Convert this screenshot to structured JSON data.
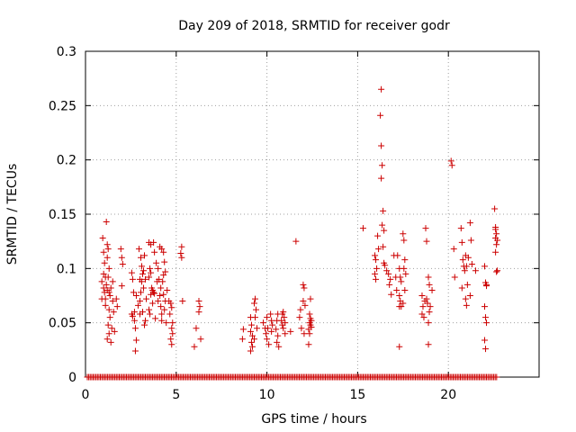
{
  "chart_data": {
    "type": "scatter",
    "title": "Day 209 of 2018, SRMTID for receiver godr",
    "xlabel": "GPS time / hours",
    "ylabel": "SRMTID / TECUs",
    "xlim": [
      0,
      25
    ],
    "ylim": [
      0,
      0.3
    ],
    "grid": true,
    "marker": "+",
    "color": "#cc0000",
    "xticks": [
      0,
      5,
      10,
      15,
      20
    ],
    "xtick_labels": [
      "0",
      "5",
      "10",
      "15",
      "20"
    ],
    "yticks": [
      0,
      0.05,
      0.1,
      0.15,
      0.2,
      0.25,
      0.3
    ],
    "ytick_labels": [
      "0",
      "0.05",
      "0.1",
      "0.15",
      "0.2",
      "0.25",
      "0.3"
    ],
    "zero_baseline": {
      "x_start": 0.1,
      "x_end": 22.7,
      "step": 0.08,
      "y": 0
    },
    "series": [
      {
        "name": "SRMTID",
        "points": [
          [
            0.95,
            0.128
          ],
          [
            1.0,
            0.115
          ],
          [
            1.05,
            0.105
          ],
          [
            1.1,
            0.092
          ],
          [
            0.9,
            0.088
          ],
          [
            1.0,
            0.082
          ],
          [
            1.05,
            0.078
          ],
          [
            1.1,
            0.072
          ],
          [
            0.9,
            0.072
          ],
          [
            1.15,
            0.143
          ],
          [
            1.2,
            0.122
          ],
          [
            1.25,
            0.118
          ],
          [
            1.2,
            0.11
          ],
          [
            1.3,
            0.1
          ],
          [
            1.25,
            0.092
          ],
          [
            1.2,
            0.08
          ],
          [
            1.3,
            0.078
          ],
          [
            1.35,
            0.075
          ],
          [
            1.4,
            0.082
          ],
          [
            1.3,
            0.062
          ],
          [
            1.35,
            0.055
          ],
          [
            1.25,
            0.048
          ],
          [
            1.3,
            0.04
          ],
          [
            1.2,
            0.035
          ],
          [
            1.4,
            0.032
          ],
          [
            1.5,
            0.07
          ],
          [
            1.55,
            0.06
          ],
          [
            1.45,
            0.045
          ],
          [
            1.6,
            0.042
          ],
          [
            1.7,
            0.072
          ],
          [
            1.75,
            0.065
          ],
          [
            1.5,
            0.088
          ],
          [
            1.1,
            0.066
          ],
          [
            1.0,
            0.095
          ],
          [
            1.15,
            0.085
          ],
          [
            1.95,
            0.118
          ],
          [
            2.0,
            0.11
          ],
          [
            2.05,
            0.104
          ],
          [
            2.0,
            0.084
          ],
          [
            2.55,
            0.096
          ],
          [
            2.6,
            0.09
          ],
          [
            2.65,
            0.078
          ],
          [
            2.7,
            0.06
          ],
          [
            2.6,
            0.056
          ],
          [
            2.55,
            0.058
          ],
          [
            2.7,
            0.052
          ],
          [
            2.8,
            0.075
          ],
          [
            2.75,
            0.045
          ],
          [
            2.8,
            0.034
          ],
          [
            2.75,
            0.024
          ],
          [
            2.9,
            0.066
          ],
          [
            3.0,
            0.07
          ],
          [
            2.95,
            0.118
          ],
          [
            3.05,
            0.11
          ],
          [
            3.1,
            0.102
          ],
          [
            3.15,
            0.095
          ],
          [
            3.0,
            0.09
          ],
          [
            3.1,
            0.088
          ],
          [
            3.2,
            0.082
          ],
          [
            3.05,
            0.078
          ],
          [
            3.0,
            0.058
          ],
          [
            3.15,
            0.06
          ],
          [
            3.3,
            0.052
          ],
          [
            3.25,
            0.048
          ],
          [
            3.2,
            0.098
          ],
          [
            3.3,
            0.09
          ],
          [
            3.25,
            0.112
          ],
          [
            3.35,
            0.072
          ],
          [
            3.5,
            0.124
          ],
          [
            3.6,
            0.122
          ],
          [
            3.55,
            0.1
          ],
          [
            3.6,
            0.096
          ],
          [
            3.5,
            0.092
          ],
          [
            3.65,
            0.082
          ],
          [
            3.7,
            0.08
          ],
          [
            3.75,
            0.078
          ],
          [
            3.8,
            0.077
          ],
          [
            3.6,
            0.076
          ],
          [
            3.5,
            0.062
          ],
          [
            3.55,
            0.058
          ],
          [
            3.7,
            0.068
          ],
          [
            3.85,
            0.054
          ],
          [
            3.75,
            0.124
          ],
          [
            3.8,
            0.115
          ],
          [
            3.9,
            0.105
          ],
          [
            4.0,
            0.1
          ],
          [
            4.05,
            0.09
          ],
          [
            3.95,
            0.088
          ],
          [
            4.1,
            0.075
          ],
          [
            4.0,
            0.07
          ],
          [
            4.15,
            0.065
          ],
          [
            4.2,
            0.058
          ],
          [
            4.1,
            0.12
          ],
          [
            4.2,
            0.118
          ],
          [
            4.3,
            0.115
          ],
          [
            4.35,
            0.106
          ],
          [
            4.4,
            0.097
          ],
          [
            4.3,
            0.094
          ],
          [
            4.25,
            0.088
          ],
          [
            4.15,
            0.082
          ],
          [
            4.3,
            0.076
          ],
          [
            4.4,
            0.07
          ],
          [
            4.35,
            0.062
          ],
          [
            4.2,
            0.052
          ],
          [
            4.45,
            0.05
          ],
          [
            4.5,
            0.08
          ],
          [
            4.6,
            0.07
          ],
          [
            4.7,
            0.068
          ],
          [
            4.75,
            0.064
          ],
          [
            4.65,
            0.058
          ],
          [
            4.8,
            0.05
          ],
          [
            4.75,
            0.045
          ],
          [
            4.8,
            0.04
          ],
          [
            4.7,
            0.035
          ],
          [
            4.75,
            0.03
          ],
          [
            5.3,
            0.12
          ],
          [
            5.25,
            0.114
          ],
          [
            5.3,
            0.11
          ],
          [
            5.35,
            0.07
          ],
          [
            6.1,
            0.045
          ],
          [
            6.0,
            0.028
          ],
          [
            6.25,
            0.07
          ],
          [
            6.3,
            0.065
          ],
          [
            6.25,
            0.06
          ],
          [
            6.35,
            0.035
          ],
          [
            8.7,
            0.044
          ],
          [
            8.65,
            0.035
          ],
          [
            9.1,
            0.055
          ],
          [
            9.15,
            0.048
          ],
          [
            9.1,
            0.042
          ],
          [
            9.2,
            0.038
          ],
          [
            9.15,
            0.032
          ],
          [
            9.2,
            0.028
          ],
          [
            9.1,
            0.024
          ],
          [
            9.35,
            0.072
          ],
          [
            9.3,
            0.068
          ],
          [
            9.4,
            0.062
          ],
          [
            9.35,
            0.055
          ],
          [
            9.45,
            0.045
          ],
          [
            9.3,
            0.035
          ],
          [
            9.8,
            0.05
          ],
          [
            9.9,
            0.045
          ],
          [
            10.0,
            0.055
          ],
          [
            10.05,
            0.045
          ],
          [
            9.95,
            0.04
          ],
          [
            10.0,
            0.035
          ],
          [
            10.1,
            0.03
          ],
          [
            10.2,
            0.058
          ],
          [
            10.25,
            0.052
          ],
          [
            10.3,
            0.048
          ],
          [
            10.25,
            0.042
          ],
          [
            10.6,
            0.058
          ],
          [
            10.55,
            0.052
          ],
          [
            10.5,
            0.044
          ],
          [
            10.6,
            0.038
          ],
          [
            10.55,
            0.032
          ],
          [
            10.65,
            0.028
          ],
          [
            10.8,
            0.052
          ],
          [
            10.85,
            0.048
          ],
          [
            10.9,
            0.06
          ],
          [
            10.95,
            0.055
          ],
          [
            11.0,
            0.05
          ],
          [
            10.9,
            0.045
          ],
          [
            11.0,
            0.04
          ],
          [
            10.85,
            0.058
          ],
          [
            11.3,
            0.042
          ],
          [
            11.6,
            0.125
          ],
          [
            11.85,
            0.062
          ],
          [
            11.8,
            0.055
          ],
          [
            11.9,
            0.045
          ],
          [
            12.0,
            0.085
          ],
          [
            12.05,
            0.082
          ],
          [
            12.0,
            0.07
          ],
          [
            12.1,
            0.066
          ],
          [
            12.05,
            0.04
          ],
          [
            12.4,
            0.072
          ],
          [
            12.35,
            0.058
          ],
          [
            12.4,
            0.054
          ],
          [
            12.45,
            0.052
          ],
          [
            12.35,
            0.05
          ],
          [
            12.4,
            0.048
          ],
          [
            12.45,
            0.046
          ],
          [
            12.3,
            0.044
          ],
          [
            12.35,
            0.04
          ],
          [
            12.3,
            0.03
          ],
          [
            15.3,
            0.137
          ],
          [
            15.95,
            0.112
          ],
          [
            16.0,
            0.108
          ],
          [
            16.05,
            0.1
          ],
          [
            15.95,
            0.095
          ],
          [
            16.0,
            0.09
          ],
          [
            16.1,
            0.13
          ],
          [
            16.15,
            0.118
          ],
          [
            16.3,
            0.265
          ],
          [
            16.25,
            0.241
          ],
          [
            16.3,
            0.213
          ],
          [
            16.35,
            0.195
          ],
          [
            16.3,
            0.183
          ],
          [
            16.4,
            0.153
          ],
          [
            16.35,
            0.14
          ],
          [
            16.45,
            0.135
          ],
          [
            16.4,
            0.12
          ],
          [
            16.45,
            0.105
          ],
          [
            16.5,
            0.103
          ],
          [
            16.6,
            0.098
          ],
          [
            16.7,
            0.095
          ],
          [
            16.8,
            0.09
          ],
          [
            16.75,
            0.085
          ],
          [
            16.85,
            0.076
          ],
          [
            17.0,
            0.112
          ],
          [
            17.1,
            0.092
          ],
          [
            17.15,
            0.08
          ],
          [
            17.2,
            0.112
          ],
          [
            17.3,
            0.1
          ],
          [
            17.35,
            0.092
          ],
          [
            17.4,
            0.088
          ],
          [
            17.3,
            0.065
          ],
          [
            17.4,
            0.065
          ],
          [
            17.35,
            0.07
          ],
          [
            17.3,
            0.075
          ],
          [
            17.5,
            0.132
          ],
          [
            17.55,
            0.126
          ],
          [
            17.6,
            0.108
          ],
          [
            17.55,
            0.1
          ],
          [
            17.65,
            0.095
          ],
          [
            17.6,
            0.08
          ],
          [
            17.5,
            0.068
          ],
          [
            17.3,
            0.028
          ],
          [
            18.55,
            0.075
          ],
          [
            18.6,
            0.065
          ],
          [
            18.55,
            0.058
          ],
          [
            18.65,
            0.055
          ],
          [
            18.7,
            0.07
          ],
          [
            18.75,
            0.137
          ],
          [
            18.8,
            0.125
          ],
          [
            18.9,
            0.092
          ],
          [
            18.95,
            0.085
          ],
          [
            18.8,
            0.072
          ],
          [
            18.85,
            0.068
          ],
          [
            19.0,
            0.065
          ],
          [
            18.95,
            0.06
          ],
          [
            18.9,
            0.05
          ],
          [
            19.1,
            0.08
          ],
          [
            18.9,
            0.03
          ],
          [
            20.15,
            0.199
          ],
          [
            20.2,
            0.195
          ],
          [
            20.3,
            0.118
          ],
          [
            20.35,
            0.092
          ],
          [
            20.7,
            0.137
          ],
          [
            20.75,
            0.124
          ],
          [
            20.8,
            0.108
          ],
          [
            20.85,
            0.102
          ],
          [
            20.9,
            0.098
          ],
          [
            20.95,
            0.112
          ],
          [
            21.0,
            0.102
          ],
          [
            21.05,
            0.085
          ],
          [
            20.95,
            0.072
          ],
          [
            21.0,
            0.066
          ],
          [
            21.1,
            0.11
          ],
          [
            21.2,
            0.142
          ],
          [
            21.25,
            0.126
          ],
          [
            21.3,
            0.104
          ],
          [
            21.2,
            0.075
          ],
          [
            20.75,
            0.082
          ],
          [
            21.5,
            0.098
          ],
          [
            22.0,
            0.102
          ],
          [
            22.05,
            0.087
          ],
          [
            22.1,
            0.085
          ],
          [
            22.0,
            0.065
          ],
          [
            22.05,
            0.055
          ],
          [
            22.1,
            0.05
          ],
          [
            22.0,
            0.034
          ],
          [
            22.05,
            0.026
          ],
          [
            22.55,
            0.155
          ],
          [
            22.6,
            0.138
          ],
          [
            22.65,
            0.132
          ],
          [
            22.6,
            0.128
          ],
          [
            22.7,
            0.126
          ],
          [
            22.65,
            0.122
          ],
          [
            22.6,
            0.115
          ],
          [
            22.7,
            0.098
          ],
          [
            22.65,
            0.097
          ],
          [
            22.6,
            0.136
          ],
          [
            22.1,
            0.084
          ]
        ]
      }
    ]
  }
}
